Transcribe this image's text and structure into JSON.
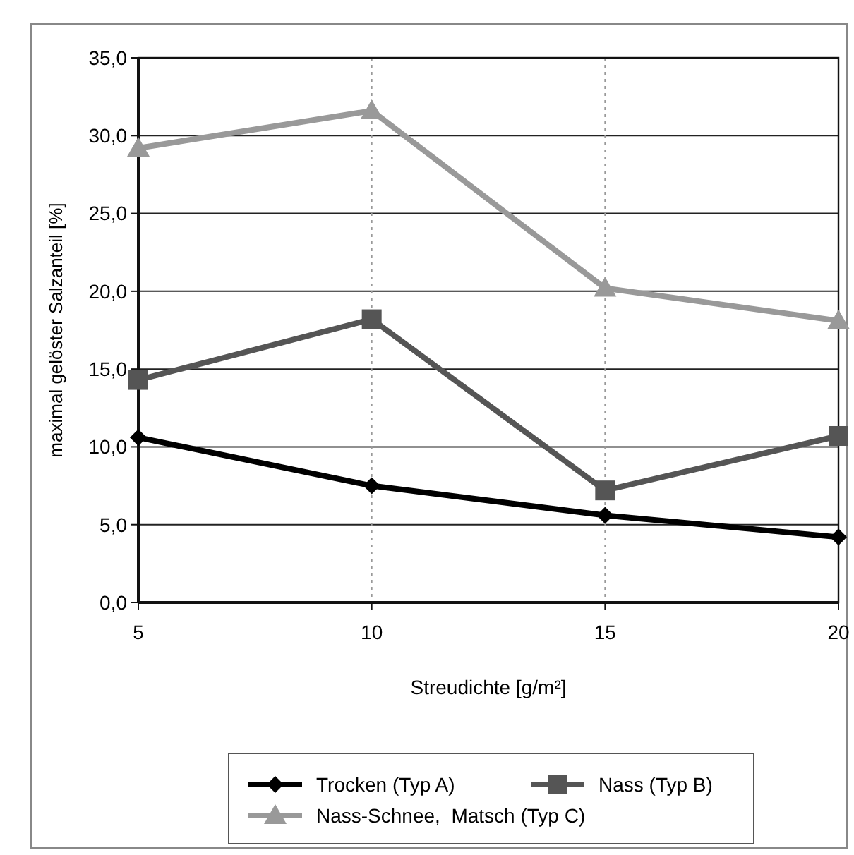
{
  "chart_data": {
    "type": "line",
    "xlabel": "Streudichte [g/m²]",
    "ylabel": "maximal gelöster Salzanteil [%]",
    "x": [
      5,
      10,
      15,
      20
    ],
    "xlim": [
      5,
      20
    ],
    "xticks": [
      5,
      10,
      15,
      20
    ],
    "ylim": [
      0,
      35
    ],
    "yticks": [
      {
        "value": 0,
        "label": "0,0"
      },
      {
        "value": 5,
        "label": "5,0"
      },
      {
        "value": 10,
        "label": "10,0"
      },
      {
        "value": 15,
        "label": "15,0"
      },
      {
        "value": 20,
        "label": "20,0"
      },
      {
        "value": 25,
        "label": "25,0"
      },
      {
        "value": 30,
        "label": "30,0"
      },
      {
        "value": 35,
        "label": "35,0"
      }
    ],
    "grid": true,
    "legend": "bottom",
    "line_style": "solid",
    "series": [
      {
        "name": "Trocken (Typ A)",
        "color": "#000000",
        "marker": "diamond",
        "values": [
          10.6,
          7.5,
          5.6,
          4.2
        ]
      },
      {
        "name": "Nass (Typ B)",
        "color": "#555555",
        "marker": "square",
        "values": [
          14.3,
          18.2,
          7.2,
          10.7
        ]
      },
      {
        "name": "Nass-Schnee,  Matsch (Typ C)",
        "color": "#999999",
        "marker": "triangle",
        "values": [
          29.2,
          31.6,
          20.2,
          18.1
        ]
      }
    ]
  }
}
